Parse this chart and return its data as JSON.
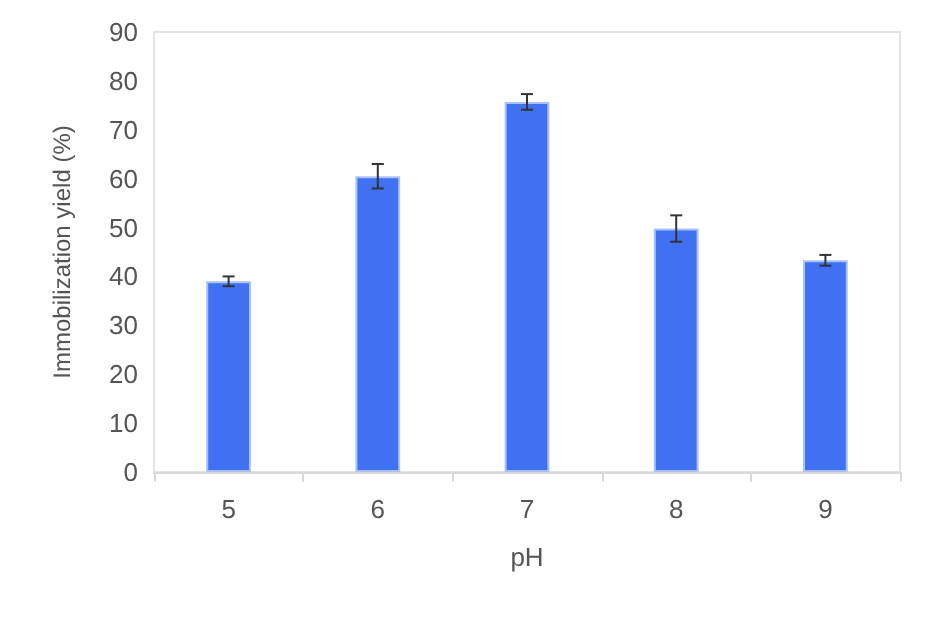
{
  "chart_data": {
    "type": "bar",
    "xlabel": "pH",
    "ylabel": "Immobilization yield (%)",
    "categories": [
      "5",
      "6",
      "7",
      "8",
      "9"
    ],
    "values": [
      39,
      60.5,
      75.7,
      49.8,
      43.3
    ],
    "errors": [
      1,
      2.5,
      1.6,
      2.7,
      1.1
    ],
    "color": "#3f71f2",
    "ylim": [
      0,
      90
    ],
    "yticks": [
      0,
      10,
      20,
      30,
      40,
      50,
      60,
      70,
      80,
      90
    ],
    "grid": false
  }
}
